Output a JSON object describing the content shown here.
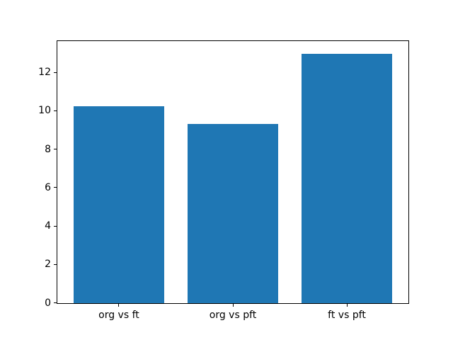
{
  "figure": {
    "background": "#ffffff"
  },
  "chart_data": {
    "type": "bar",
    "categories": [
      "org vs ft",
      "org vs pft",
      "ft vs pft"
    ],
    "values": [
      10.25,
      9.35,
      13.0
    ],
    "title": "",
    "xlabel": "",
    "ylabel": "",
    "ylim": [
      0,
      13.65
    ],
    "yticks": [
      0,
      2,
      4,
      6,
      8,
      10,
      12
    ],
    "bar_color": "#1f77b4",
    "bar_width_ratio": 0.8,
    "grid": false,
    "legend": null
  }
}
